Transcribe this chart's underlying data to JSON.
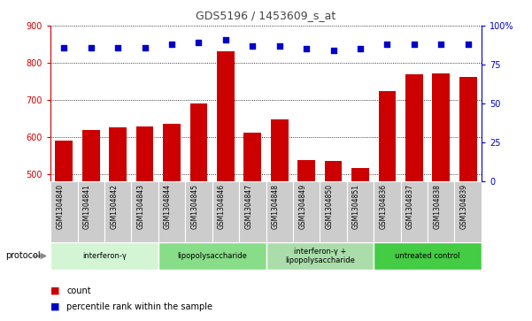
{
  "title": "GDS5196 / 1453609_s_at",
  "samples": [
    "GSM1304840",
    "GSM1304841",
    "GSM1304842",
    "GSM1304843",
    "GSM1304844",
    "GSM1304845",
    "GSM1304846",
    "GSM1304847",
    "GSM1304848",
    "GSM1304849",
    "GSM1304850",
    "GSM1304851",
    "GSM1304836",
    "GSM1304837",
    "GSM1304838",
    "GSM1304839"
  ],
  "counts": [
    590,
    618,
    625,
    628,
    636,
    690,
    830,
    612,
    648,
    537,
    534,
    516,
    724,
    770,
    772,
    762
  ],
  "percentiles": [
    86,
    86,
    86,
    86,
    88,
    89,
    91,
    87,
    87,
    85,
    84,
    85,
    88,
    88,
    88,
    88
  ],
  "ylim_left": [
    480,
    900
  ],
  "ylim_right": [
    0,
    100
  ],
  "yticks_left": [
    500,
    600,
    700,
    800,
    900
  ],
  "yticks_right": [
    0,
    25,
    50,
    75,
    100
  ],
  "groups": [
    {
      "label": "interferon-γ",
      "start": 0,
      "end": 4,
      "color": "#d4f5d4"
    },
    {
      "label": "lipopolysaccharide",
      "start": 4,
      "end": 8,
      "color": "#88dd88"
    },
    {
      "label": "interferon-γ +\nlipopolysaccharide",
      "start": 8,
      "end": 12,
      "color": "#aaddaa"
    },
    {
      "label": "untreated control",
      "start": 12,
      "end": 16,
      "color": "#44cc44"
    }
  ],
  "bar_color": "#cc0000",
  "dot_color": "#0000cc",
  "grid_color": "#000000",
  "left_axis_color": "#cc0000",
  "right_axis_color": "#0000cc",
  "bg_color": "#ffffff",
  "sample_bg_color": "#cccccc"
}
